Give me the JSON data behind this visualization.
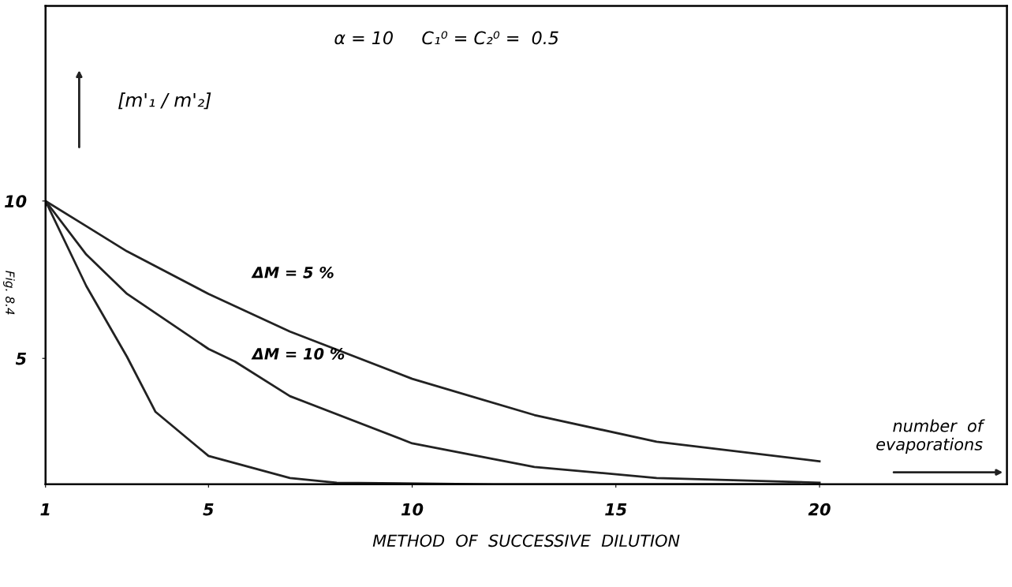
{
  "chart_data": {
    "type": "line",
    "xlabel": "METHOD  OF  SUCCESSIVE  DILUTION",
    "ylabel": "[m'₁ / m'₂]",
    "xlim": [
      1,
      24.6
    ],
    "ylim": [
      1,
      16.2
    ],
    "xticks": [
      1,
      5,
      10,
      15,
      20
    ],
    "yticks": [
      5,
      10
    ],
    "grid": false,
    "marker": "none",
    "line_style": "solid",
    "series": [
      {
        "color": "#222222",
        "x": [
          1,
          2,
          3,
          5,
          7,
          10,
          13,
          16,
          20
        ],
        "values": [
          10,
          9.2,
          8.4,
          7.05,
          5.85,
          4.35,
          3.2,
          2.35,
          1.73
        ]
      },
      {
        "color": "#222222",
        "x": [
          1,
          2,
          3,
          5,
          5.65,
          7,
          10,
          13,
          16,
          20
        ],
        "values": [
          10,
          8.3,
          7.05,
          5.3,
          4.9,
          3.8,
          2.3,
          1.55,
          1.2,
          1.05
        ]
      },
      {
        "color": "#222222",
        "x": [
          1,
          2,
          3,
          3.7,
          5,
          7,
          8.15,
          12,
          19.5
        ],
        "values": [
          10,
          7.3,
          5.05,
          3.3,
          1.9,
          1.2,
          1.05,
          1.0,
          1.0
        ]
      }
    ],
    "annotations": [
      "α = 10     C₁⁰ = C₂⁰ =  0.5",
      "ΔM = 5 %",
      "ΔM = 10 %",
      "number  of\nevaporations",
      "Fig. 8.4"
    ]
  }
}
